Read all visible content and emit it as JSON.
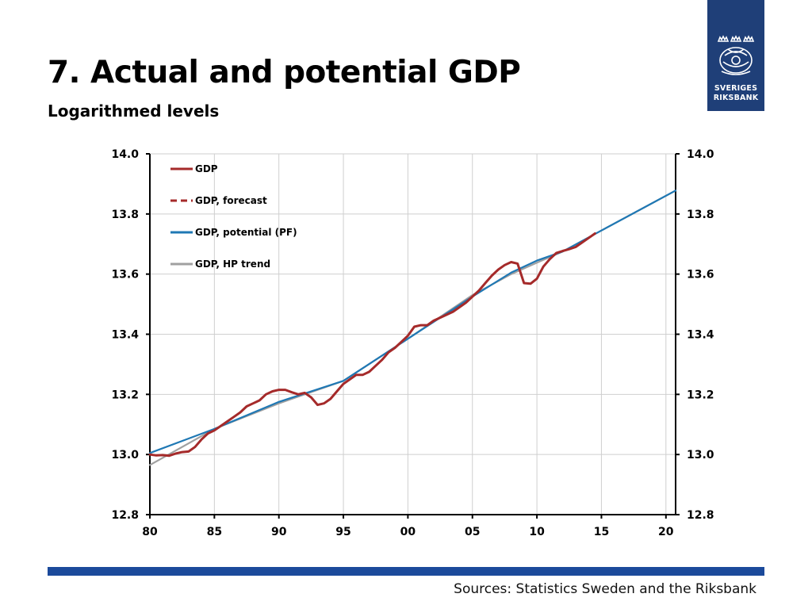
{
  "title": "7. Actual and potential GDP",
  "subtitle": "Logarithmed levels",
  "logo": {
    "line1": "SVERIGES",
    "line2": "RIKSBANK",
    "color": "#1f3f78"
  },
  "sources": "Sources: Statistics Sweden and the Riksbank",
  "chart_data": {
    "type": "line",
    "title": "",
    "xlabel": "",
    "ylabel": "",
    "xlim": [
      1980,
      2020.75
    ],
    "ylim": [
      12.8,
      14.0
    ],
    "x_ticks": [
      1980,
      1985,
      1990,
      1995,
      2000,
      2005,
      2010,
      2015,
      2020
    ],
    "x_tick_labels": [
      "80",
      "85",
      "90",
      "95",
      "00",
      "05",
      "10",
      "15",
      "20"
    ],
    "y_ticks": [
      12.8,
      13.0,
      13.2,
      13.4,
      13.6,
      13.8,
      14.0
    ],
    "y_tick_labels": [
      "12.8",
      "13.0",
      "13.2",
      "13.4",
      "13.6",
      "13.8",
      "14.0"
    ],
    "grid": true,
    "legend_position": "top-left",
    "series": [
      {
        "name": "GDP",
        "color": "#a52a2a",
        "style": "solid",
        "x": [
          1980,
          1980.5,
          1981,
          1981.5,
          1982,
          1982.5,
          1983,
          1983.5,
          1984,
          1984.5,
          1985,
          1985.5,
          1986,
          1986.5,
          1987,
          1987.5,
          1988,
          1988.5,
          1989,
          1989.5,
          1990,
          1990.5,
          1991,
          1991.5,
          1992,
          1992.5,
          1993,
          1993.5,
          1994,
          1994.5,
          1995,
          1995.5,
          1996,
          1996.5,
          1997,
          1997.5,
          1998,
          1998.5,
          1999,
          1999.5,
          2000,
          2000.5,
          2001,
          2001.5,
          2002,
          2002.5,
          2003,
          2003.5,
          2004,
          2004.5,
          2005,
          2005.5,
          2006,
          2006.5,
          2007,
          2007.5,
          2008,
          2008.5,
          2009,
          2009.5,
          2010,
          2010.5,
          2011,
          2011.5,
          2012,
          2012.5,
          2013,
          2013.5,
          2014,
          2014.5
        ],
        "y": [
          13.0,
          12.997,
          12.998,
          12.996,
          13.003,
          13.008,
          13.01,
          13.025,
          13.05,
          13.07,
          13.08,
          13.095,
          13.11,
          13.125,
          13.14,
          13.16,
          13.17,
          13.18,
          13.2,
          13.21,
          13.215,
          13.215,
          13.207,
          13.2,
          13.205,
          13.19,
          13.165,
          13.17,
          13.185,
          13.21,
          13.235,
          13.25,
          13.265,
          13.265,
          13.275,
          13.295,
          13.315,
          13.34,
          13.355,
          13.375,
          13.395,
          13.425,
          13.43,
          13.43,
          13.445,
          13.455,
          13.465,
          13.475,
          13.49,
          13.505,
          13.525,
          13.545,
          13.57,
          13.595,
          13.615,
          13.63,
          13.64,
          13.635,
          13.57,
          13.568,
          13.585,
          13.625,
          13.65,
          13.67,
          13.677,
          13.683,
          13.69,
          13.705,
          13.72,
          13.735
        ]
      },
      {
        "name": "GDP, forecast",
        "color": "#a52a2a",
        "style": "dashed",
        "x": [],
        "y": []
      },
      {
        "name": "GDP, potential (PF)",
        "color": "#1f78b4",
        "style": "solid",
        "x": [
          1980,
          1985,
          1990,
          1995,
          2000,
          2005,
          2008,
          2010,
          2012,
          2015,
          2020.75
        ],
        "y": [
          13.005,
          13.085,
          13.175,
          13.245,
          13.385,
          13.525,
          13.605,
          13.645,
          13.675,
          13.745,
          13.878
        ]
      },
      {
        "name": "GDP, HP trend",
        "color": "#a0a0a0",
        "style": "solid",
        "x": [
          1980,
          1985,
          1990,
          1995,
          2000,
          2005,
          2008,
          2010,
          2012,
          2015,
          2020.75
        ],
        "y": [
          12.965,
          13.085,
          13.17,
          13.245,
          13.385,
          13.53,
          13.6,
          13.638,
          13.675,
          13.745,
          13.878
        ]
      }
    ]
  }
}
